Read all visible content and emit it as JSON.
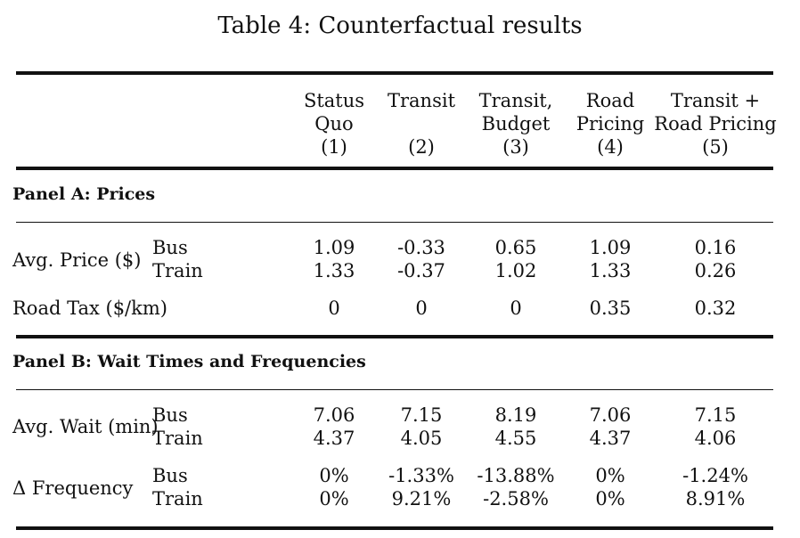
{
  "title": "Table 4: Counterfactual results",
  "columns": [
    {
      "lines": [
        "Status",
        "Quo",
        "(1)"
      ]
    },
    {
      "lines": [
        "Transit",
        "",
        "(2)"
      ]
    },
    {
      "lines": [
        "Transit,",
        "Budget",
        "(3)"
      ]
    },
    {
      "lines": [
        "Road",
        "Pricing",
        "(4)"
      ]
    },
    {
      "lines": [
        "Transit +",
        "Road Pricing",
        "(5)"
      ]
    }
  ],
  "panel_a": {
    "label": "Panel A: Prices",
    "avg_price": {
      "label": "Avg. Price ($)",
      "bus_label": "Bus",
      "train_label": "Train",
      "bus": [
        "1.09",
        "-0.33",
        "0.65",
        "1.09",
        "0.16"
      ],
      "train": [
        "1.33",
        "-0.37",
        "1.02",
        "1.33",
        "0.26"
      ]
    },
    "road_tax": {
      "label": "Road Tax ($/km)",
      "values": [
        "0",
        "0",
        "0",
        "0.35",
        "0.32"
      ]
    }
  },
  "panel_b": {
    "label": "Panel B: Wait Times and Frequencies",
    "avg_wait": {
      "label": "Avg. Wait (min)",
      "bus_label": "Bus",
      "train_label": "Train",
      "bus": [
        "7.06",
        "7.15",
        "8.19",
        "7.06",
        "7.15"
      ],
      "train": [
        "4.37",
        "4.05",
        "4.55",
        "4.37",
        "4.06"
      ]
    },
    "frequency": {
      "label": "Δ Frequency",
      "bus_label": "Bus",
      "train_label": "Train",
      "bus": [
        "0%",
        "-1.33%",
        "-13.88%",
        "0%",
        "-1.24%"
      ],
      "train": [
        "0%",
        "9.21%",
        "-2.58%",
        "0%",
        "8.91%"
      ]
    }
  }
}
